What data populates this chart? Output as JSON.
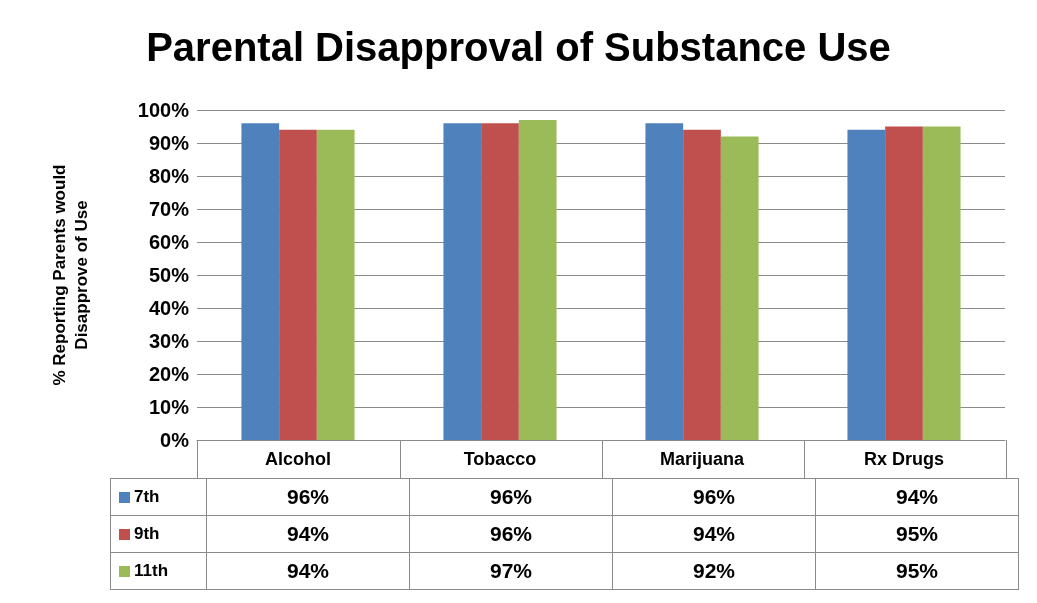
{
  "chart_data": {
    "type": "bar",
    "title": "Parental Disapproval of Substance Use",
    "ylabel": "% Reporting Parents would\nDisapprove of Use",
    "categories": [
      "Alcohol",
      "Tobacco",
      "Marijuana",
      "Rx Drugs"
    ],
    "series": [
      {
        "name": "7th",
        "color": "#4f81bd",
        "values": [
          96,
          96,
          96,
          94
        ]
      },
      {
        "name": "9th",
        "color": "#c0504d",
        "values": [
          94,
          96,
          94,
          95
        ]
      },
      {
        "name": "11th",
        "color": "#9bbb59",
        "values": [
          94,
          97,
          92,
          95
        ]
      }
    ],
    "ylim": [
      0,
      100
    ],
    "yticks": [
      {
        "value": 0,
        "label": "0%"
      },
      {
        "value": 10,
        "label": "10%"
      },
      {
        "value": 20,
        "label": "20%"
      },
      {
        "value": 30,
        "label": "30%"
      },
      {
        "value": 40,
        "label": "40%"
      },
      {
        "value": 50,
        "label": "50%"
      },
      {
        "value": 60,
        "label": "60%"
      },
      {
        "value": 70,
        "label": "70%"
      },
      {
        "value": 80,
        "label": "80%"
      },
      {
        "value": 90,
        "label": "90%"
      },
      {
        "value": 100,
        "label": "100%"
      }
    ],
    "value_labels": [
      [
        "96%",
        "96%",
        "96%",
        "94%"
      ],
      [
        "94%",
        "96%",
        "94%",
        "95%"
      ],
      [
        "94%",
        "97%",
        "92%",
        "95%"
      ]
    ],
    "grid": "y",
    "legend": "bottom left"
  }
}
